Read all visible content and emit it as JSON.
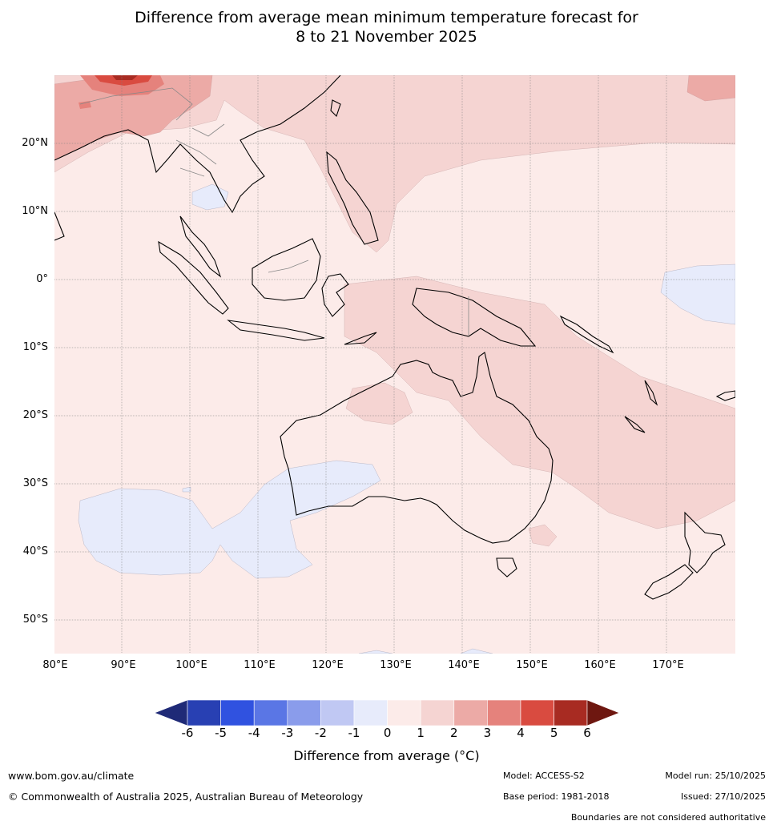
{
  "title_line1": "Difference from average mean minimum temperature forecast for",
  "title_line2": "8 to 21 November 2025",
  "map": {
    "lat_labels": [
      "20°N",
      "10°N",
      "0°",
      "10°S",
      "20°S",
      "30°S",
      "40°S",
      "50°S"
    ],
    "lon_labels": [
      "80°E",
      "90°E",
      "100°E",
      "110°E",
      "120°E",
      "130°E",
      "140°E",
      "150°E",
      "160°E",
      "170°E"
    ]
  },
  "colorbar": {
    "ticks": [
      "-6",
      "-5",
      "-4",
      "-3",
      "-2",
      "-1",
      "0",
      "1",
      "2",
      "3",
      "4",
      "5",
      "6"
    ],
    "colors": [
      "#1f2a77",
      "#2840b3",
      "#3052e0",
      "#5a76e5",
      "#8a9ceb",
      "#c0c8f3",
      "#e7ebfb",
      "#fcebe9",
      "#f5d4d2",
      "#ecaaa6",
      "#e5827c",
      "#d94b40",
      "#a82b22",
      "#6e1710"
    ],
    "label": "Difference from average (°C)"
  },
  "footer": {
    "website": "www.bom.gov.au/climate",
    "copyright": "© Commonwealth of Australia 2025, Australian Bureau of Meteorology",
    "model": "Model: ACCESS-S2",
    "base_period": "Base period: 1981-2018",
    "model_run": "Model run: 25/10/2025",
    "issued": "Issued: 27/10/2025",
    "boundaries": "Boundaries are not considered authoritative"
  }
}
